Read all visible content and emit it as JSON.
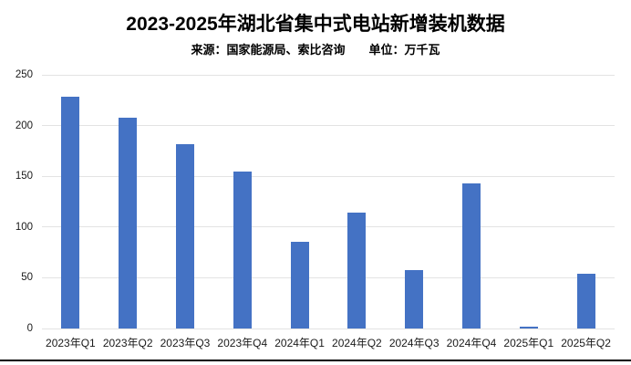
{
  "page": {
    "background": "#ffffff"
  },
  "chart_data": {
    "type": "bar",
    "title": "2023-2025年湖北省集中式电站新增装机数据",
    "source_label": "来源：国家能源局、索比咨询",
    "unit_label": "单位：万千瓦",
    "categories": [
      "2023年Q1",
      "2023年Q2",
      "2023年Q3",
      "2023年Q4",
      "2024年Q1",
      "2024年Q2",
      "2024年Q3",
      "2024年Q4",
      "2025年Q1",
      "2025年Q2"
    ],
    "values": [
      228,
      208,
      182,
      155,
      85,
      114,
      58,
      143,
      2,
      54
    ],
    "xlabel": "",
    "ylabel": "",
    "ylim": [
      0,
      250
    ],
    "yticks": [
      0,
      50,
      100,
      150,
      200,
      250
    ],
    "legend": "none",
    "grid": "horizontal-major-only",
    "data_labels": "none",
    "bar_color": "#4472C4",
    "gridline_color": "#E3E3E3",
    "bottom_rule_color": "#000000"
  }
}
